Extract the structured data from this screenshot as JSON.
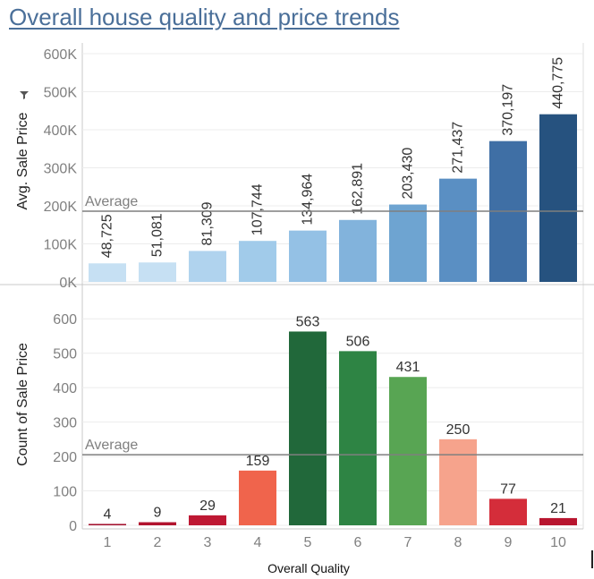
{
  "title": "Overall house quality and price trends",
  "chart_data": [
    {
      "type": "bar",
      "categories": [
        "1",
        "2",
        "3",
        "4",
        "5",
        "6",
        "7",
        "8",
        "9",
        "10"
      ],
      "values": [
        48725,
        51081,
        81309,
        107744,
        134964,
        162891,
        203430,
        271437,
        370197,
        440775
      ],
      "value_labels": [
        "48,725",
        "51,081",
        "81,309",
        "107,744",
        "134,964",
        "162,891",
        "203,430",
        "271,437",
        "370,197",
        "440,775"
      ],
      "ylabel": "Avg. Sale Price",
      "ylabel_icon": "filter-icon",
      "ylim": [
        0,
        600000
      ],
      "yticks": [
        0,
        100000,
        200000,
        300000,
        400000,
        500000,
        600000
      ],
      "ytick_labels": [
        "0K",
        "100K",
        "200K",
        "300K",
        "400K",
        "500K",
        "600K"
      ],
      "reference_line": {
        "label": "Average",
        "value": 186000
      },
      "colors": [
        "#c6e0f3",
        "#c6e0f3",
        "#b0d3ee",
        "#a1cbea",
        "#94c1e5",
        "#82b3dc",
        "#6ea4d1",
        "#5a8fc3",
        "#3f6fa5",
        "#26527f"
      ],
      "grid": true
    },
    {
      "type": "bar",
      "categories": [
        "1",
        "2",
        "3",
        "4",
        "5",
        "6",
        "7",
        "8",
        "9",
        "10"
      ],
      "values": [
        4,
        9,
        29,
        159,
        563,
        506,
        431,
        250,
        77,
        21
      ],
      "value_labels": [
        "4",
        "9",
        "29",
        "159",
        "563",
        "506",
        "431",
        "250",
        "77",
        "21"
      ],
      "ylabel": "Count of Sale Price",
      "xlabel": "Overall Quality",
      "ylim": [
        0,
        650
      ],
      "yticks": [
        0,
        100,
        200,
        300,
        400,
        500,
        600
      ],
      "ytick_labels": [
        "0",
        "100",
        "200",
        "300",
        "400",
        "500",
        "600"
      ],
      "reference_line": {
        "label": "Average",
        "value": 205
      },
      "colors": [
        "#a3112d",
        "#b2132e",
        "#be1833",
        "#f0644c",
        "#21683a",
        "#2e8444",
        "#58a553",
        "#f6a38c",
        "#d42d3a",
        "#b8152f"
      ],
      "grid": true
    }
  ]
}
